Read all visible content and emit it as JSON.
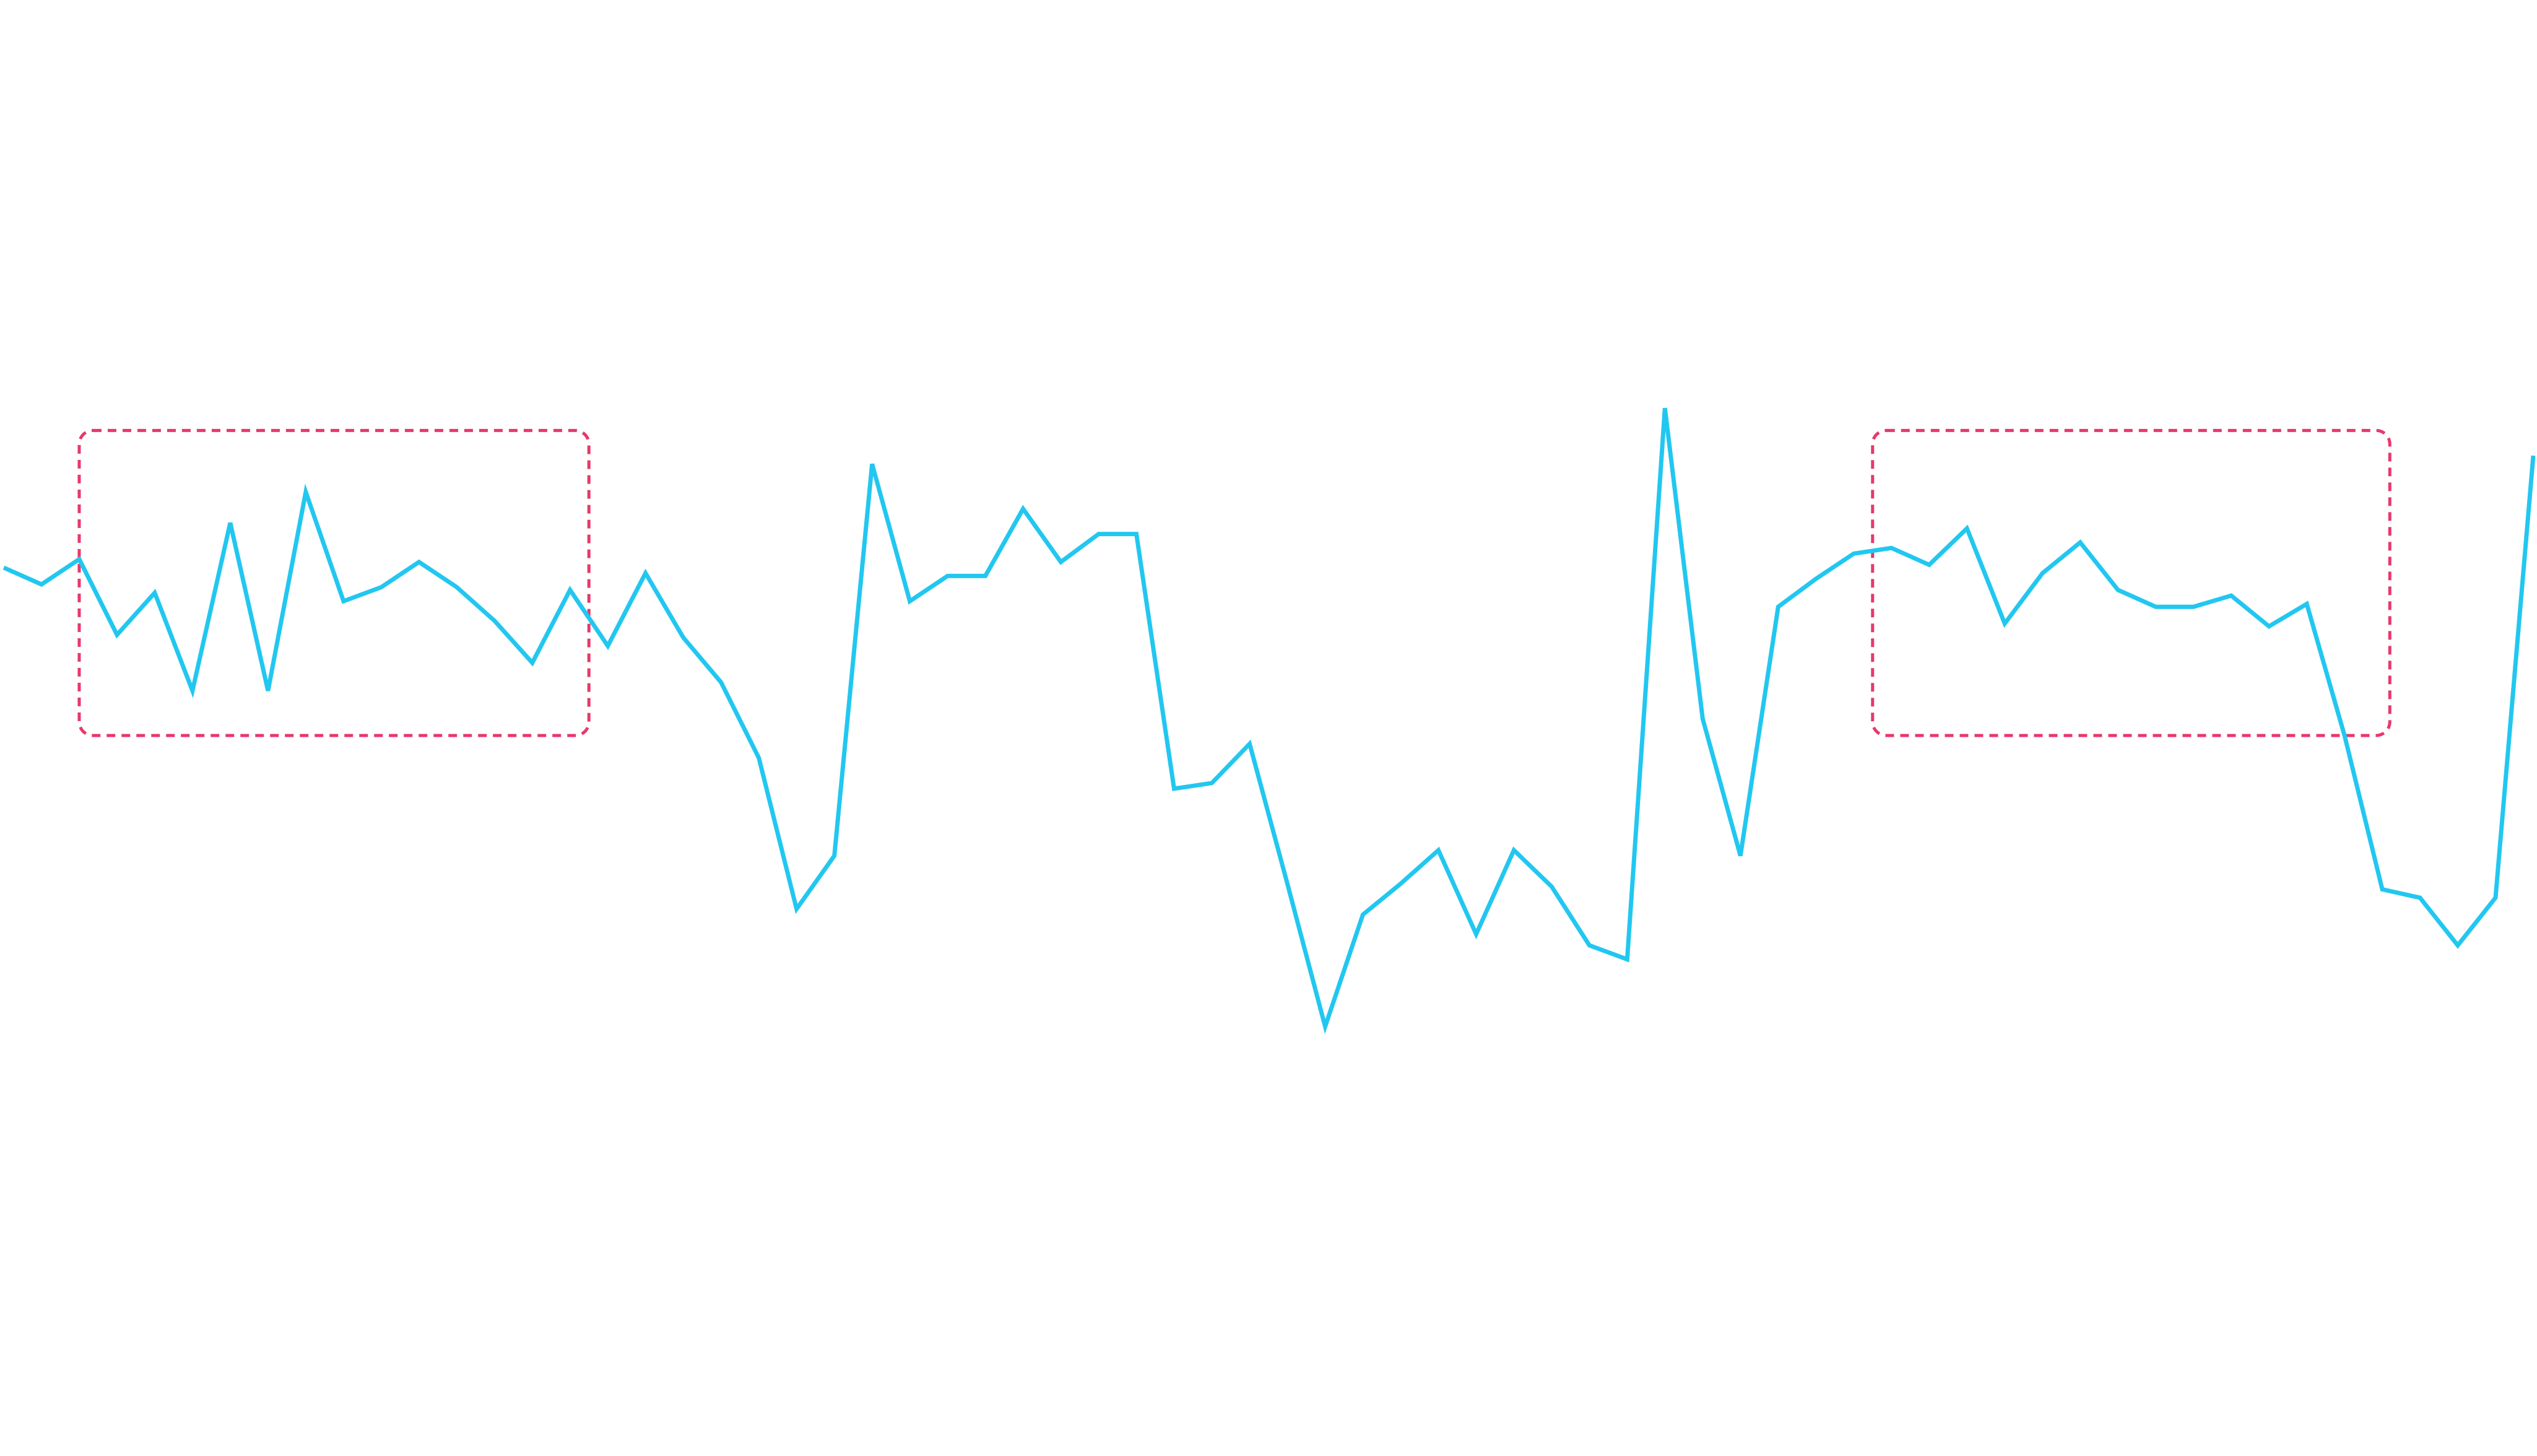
{
  "chart_data": {
    "type": "line",
    "title": "",
    "xlabel": "",
    "ylabel": "",
    "x_range": [
      0,
      67
    ],
    "ylim": [
      -100,
      400
    ],
    "grid": false,
    "legend": "none",
    "x": [
      0,
      1,
      2,
      3,
      4,
      5,
      6,
      7,
      8,
      9,
      10,
      11,
      12,
      13,
      14,
      15,
      16,
      17,
      18,
      19,
      20,
      21,
      22,
      23,
      24,
      25,
      26,
      27,
      28,
      29,
      30,
      31,
      32,
      33,
      34,
      35,
      36,
      37,
      38,
      39,
      40,
      41,
      42,
      43,
      44,
      45,
      46,
      47,
      48,
      49,
      50,
      51,
      52,
      53,
      54,
      55,
      56,
      57,
      58,
      59,
      60,
      61,
      62,
      63,
      64,
      65,
      66,
      67
    ],
    "series": [
      {
        "color": "#22c7f0",
        "values": [
          206,
          200,
          209,
          182,
          197,
          162,
          222,
          162,
          233,
          194,
          199,
          208,
          199,
          187,
          172,
          198,
          178,
          204,
          181,
          165,
          138,
          84,
          103,
          243,
          194,
          203,
          203,
          227,
          208,
          218,
          218,
          127,
          129,
          143,
          93,
          42,
          82,
          93,
          105,
          75,
          105,
          92,
          71,
          66,
          263,
          152,
          103,
          192,
          202,
          211,
          213,
          207,
          220,
          186,
          204,
          215,
          198,
          192,
          192,
          196,
          185,
          193,
          146,
          91,
          88,
          71,
          88,
          246
        ]
      }
    ],
    "annotations": [
      {
        "type": "highlight-box",
        "x_range": [
          2,
          15.5
        ],
        "y_range": [
          146,
          255
        ],
        "color": "#e8386b"
      },
      {
        "type": "highlight-box",
        "x_range": [
          49.5,
          63.2
        ],
        "y_range": [
          146,
          255
        ],
        "color": "#e8386b"
      }
    ]
  }
}
